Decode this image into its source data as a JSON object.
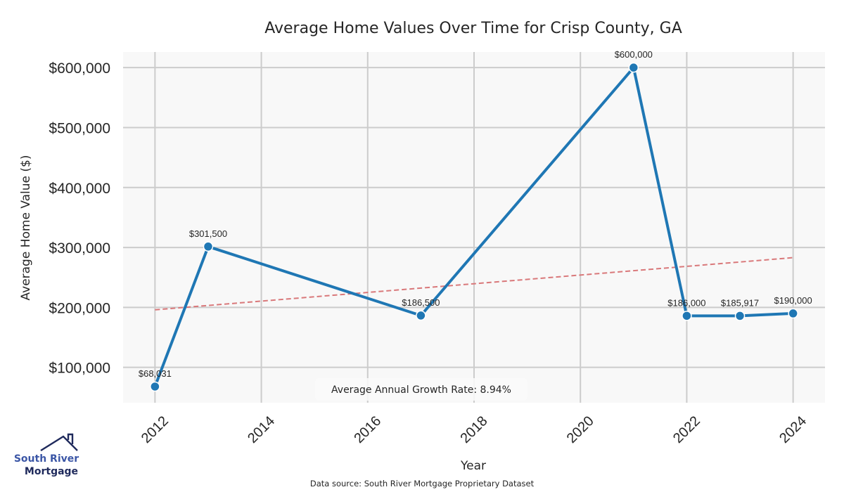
{
  "chart_data": {
    "type": "line",
    "title": "Average Home Values Over Time for Crisp County, GA",
    "xlabel": "Year",
    "ylabel": "Average Home Value ($)",
    "x": [
      2012,
      2013,
      2017,
      2021,
      2022,
      2023,
      2024
    ],
    "series": [
      {
        "name": "Average Home Value",
        "values": [
          68031,
          301500,
          186500,
          600000,
          186000,
          185917,
          190000
        ],
        "labels": [
          "$68,031",
          "$301,500",
          "$186,500",
          "$600,000",
          "$186,000",
          "$185,917",
          "$190,000"
        ],
        "color": "#1f77b4"
      },
      {
        "name": "Trend",
        "style": "dashed",
        "x": [
          2012,
          2024
        ],
        "values": [
          196000,
          283000
        ],
        "color": "#d9787a"
      }
    ],
    "xticks": [
      2012,
      2014,
      2016,
      2018,
      2020,
      2022,
      2024
    ],
    "xtick_labels": [
      "2012",
      "2014",
      "2016",
      "2018",
      "2020",
      "2022",
      "2024"
    ],
    "yticks": [
      100000,
      200000,
      300000,
      400000,
      500000,
      600000
    ],
    "ytick_labels": [
      "$100,000",
      "$200,000",
      "$300,000",
      "$400,000",
      "$500,000",
      "$600,000"
    ],
    "xlim": [
      2011.4,
      2024.6
    ],
    "ylim": [
      41000,
      626000
    ],
    "grid": true,
    "annotation": "Average Annual Growth Rate: 8.94%",
    "source": "Data source: South River Mortgage Proprietary Dataset",
    "colors": {
      "plot_background": "#f8f8f8",
      "grid": "#cccccc",
      "line": "#1f77b4",
      "trend": "#d9787a"
    }
  },
  "logo": {
    "line1": "South River",
    "line2": "Mortgage",
    "color1": "#3b56a6",
    "color2": "#1f2a5c"
  }
}
